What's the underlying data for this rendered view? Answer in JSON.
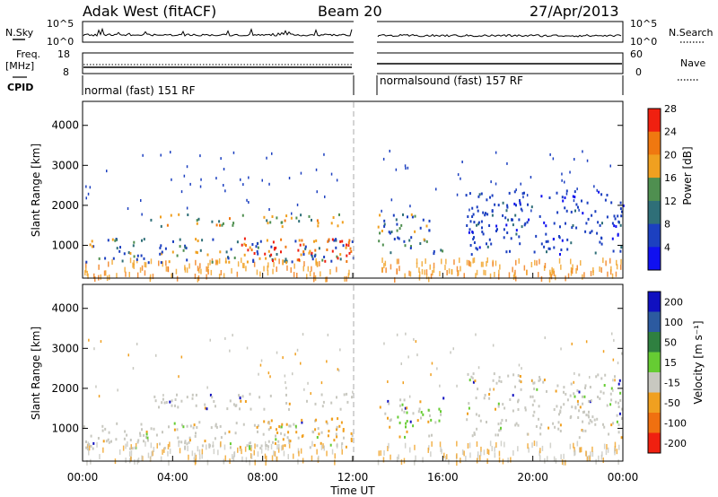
{
  "header": {
    "station": "Adak West (fitACF)",
    "beam": "Beam 20",
    "date": "27/Apr/2013"
  },
  "param_panels": {
    "nsky_label": "N.Sky",
    "nsky_ticks": [
      "10^5",
      "10^0"
    ],
    "nsearch_label": "N.Search",
    "nsearch_ticks": [
      "10^5",
      "10^0"
    ],
    "freq_label_1": "Freq.",
    "freq_label_2": "[MHz]",
    "freq_ticks": [
      "18",
      "8"
    ],
    "nave_label": "Nave",
    "nave_ticks": [
      "60",
      "0"
    ],
    "cpid_label": "CPID",
    "cpid_segments": [
      "normal (fast) 151 RF",
      "normalsound (fast) 157 RF"
    ]
  },
  "chart_data": [
    {
      "type": "heatmap",
      "name": "power",
      "ylabel": "Slant Range [km]",
      "yticks": [
        "1000",
        "2000",
        "3000",
        "4000"
      ],
      "ylim": [
        180,
        4600
      ],
      "xlim_hours": [
        0,
        24
      ],
      "data_gap_hours": [
        12.0,
        13.1
      ],
      "colorbar": {
        "label": "Power [dB]",
        "ticks": [
          "4",
          "8",
          "12",
          "16",
          "20",
          "24",
          "28"
        ],
        "colors": [
          "#1010f0",
          "#1c40c0",
          "#2f6f78",
          "#4f8f50",
          "#f0a020",
          "#f07810",
          "#f02010"
        ]
      },
      "bands": [
        {
          "x": [
            0,
            12
          ],
          "range": [
            600,
            1200
          ],
          "level": "mixed"
        },
        {
          "x": [
            3,
            12
          ],
          "range": [
            1500,
            1800
          ],
          "level": "high"
        },
        {
          "x": [
            7,
            12
          ],
          "range": [
            600,
            1200
          ],
          "level": "very-high"
        },
        {
          "x": [
            13,
            16
          ],
          "range": [
            800,
            1800
          ],
          "level": "mixed"
        },
        {
          "x": [
            17,
            24
          ],
          "range": [
            800,
            2400
          ],
          "level": "low"
        }
      ]
    },
    {
      "type": "heatmap",
      "name": "velocity",
      "ylabel": "Slant Range [km]",
      "yticks": [
        "1000",
        "2000",
        "3000",
        "4000"
      ],
      "ylim": [
        180,
        4600
      ],
      "xlim_hours": [
        0,
        24
      ],
      "data_gap_hours": [
        12.0,
        13.1
      ],
      "colorbar": {
        "label": "Velocity [m s⁻¹]",
        "ticks": [
          "200",
          "100",
          "50",
          "15",
          "-15",
          "-50",
          "-100",
          "-200"
        ],
        "colors": [
          "#1010c0",
          "#2c5aa0",
          "#2f8040",
          "#66cc33",
          "#c8c8c0",
          "#f0a020",
          "#f07010",
          "#f02010"
        ]
      },
      "bands": [
        {
          "x": [
            0,
            12
          ],
          "range": [
            500,
            1200
          ],
          "level": "grey"
        },
        {
          "x": [
            3,
            12
          ],
          "range": [
            1500,
            1900
          ],
          "level": "grey"
        },
        {
          "x": [
            8,
            12
          ],
          "range": [
            600,
            1300
          ],
          "level": "orange"
        },
        {
          "x": [
            13,
            16
          ],
          "range": [
            800,
            1800
          ],
          "level": "mixed"
        },
        {
          "x": [
            17,
            24
          ],
          "range": [
            800,
            2400
          ],
          "level": "grey"
        }
      ]
    }
  ],
  "x_axis": {
    "ticks": [
      "00:00",
      "04:00",
      "08:00",
      "12:00",
      "16:00",
      "20:00",
      "00:00"
    ],
    "label": "Time UT"
  }
}
